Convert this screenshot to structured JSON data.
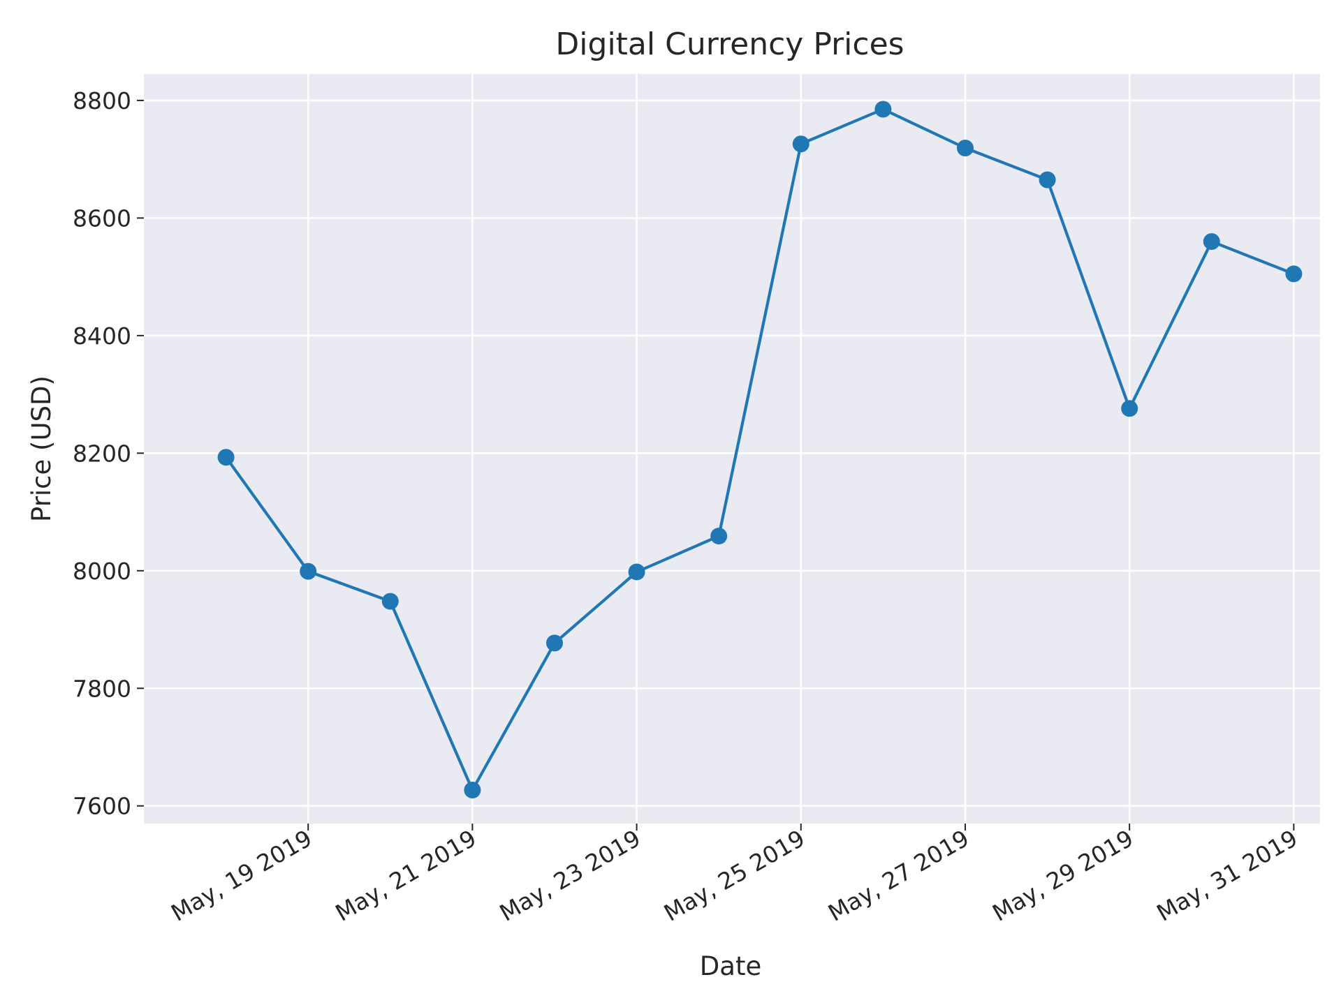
{
  "chart_data": {
    "type": "line",
    "title": "Digital Currency Prices",
    "xlabel": "Date",
    "ylabel": "Price (USD)",
    "x": [
      "2019-05-18",
      "2019-05-19",
      "2019-05-20",
      "2019-05-21",
      "2019-05-22",
      "2019-05-23",
      "2019-05-24",
      "2019-05-25",
      "2019-05-26",
      "2019-05-27",
      "2019-05-28",
      "2019-05-29",
      "2019-05-30",
      "2019-05-31"
    ],
    "series": [
      {
        "values": [
          8193,
          7999,
          7948,
          7627,
          7877,
          7998,
          8059,
          8726,
          8785,
          8719,
          8665,
          8276,
          8560,
          8505
        ]
      }
    ],
    "xlim": [
      "2019-05-17",
      "2019-05-31"
    ],
    "ylim": [
      7570,
      8845
    ],
    "yticks": [
      7600,
      7800,
      8000,
      8200,
      8400,
      8600,
      8800
    ],
    "ytick_labels": [
      "7600",
      "7800",
      "8000",
      "8200",
      "8400",
      "8600",
      "8800"
    ],
    "xticks": [
      "2019-05-19",
      "2019-05-21",
      "2019-05-23",
      "2019-05-25",
      "2019-05-27",
      "2019-05-29",
      "2019-05-31"
    ],
    "xtick_labels": [
      "May, 19 2019",
      "May, 21 2019",
      "May, 23 2019",
      "May, 25 2019",
      "May, 27 2019",
      "May, 29 2019",
      "May, 31 2019"
    ],
    "grid": true,
    "colors": {
      "line": "#1f77b4",
      "plot_bg": "#eaeaf2",
      "grid": "#ffffff",
      "text": "#262626"
    },
    "marker": "circle"
  }
}
